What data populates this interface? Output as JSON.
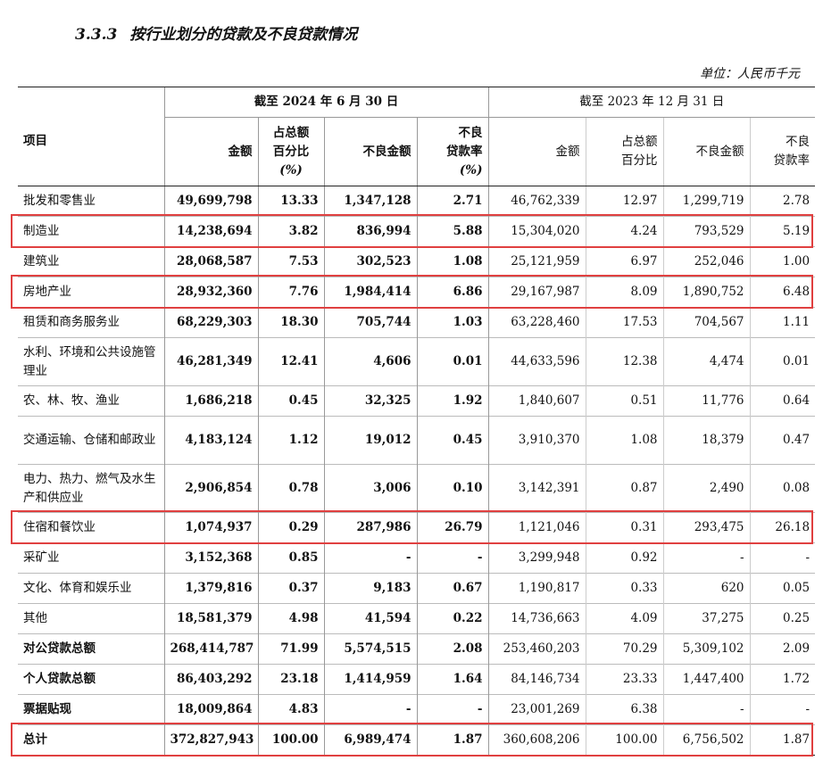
{
  "title": {
    "number": "3.3.3",
    "text": "按行业划分的贷款及不良贷款情况"
  },
  "unit": "单位：人民币千元",
  "header": {
    "item": "项目",
    "period_current": "截至 2024 年 6 月 30 日",
    "period_prior": "截至 2023 年 12 月 31 日",
    "col_amount": "金额",
    "col_share_1": "占总额",
    "col_share_2": "百分比",
    "col_share_3": "(%)",
    "col_npl_amount": "不良金额",
    "col_npl_rate_1": "不良",
    "col_npl_rate_2": "贷款率",
    "col_npl_rate_3": "(%)"
  },
  "rows": [
    {
      "label": "批发和零售业",
      "c_amt": "49,699,798",
      "c_pct": "13.33",
      "c_npl": "1,347,128",
      "c_rate": "2.71",
      "p_amt": "46,762,339",
      "p_pct": "12.97",
      "p_npl": "1,299,719",
      "p_rate": "2.78"
    },
    {
      "label": "制造业",
      "c_amt": "14,238,694",
      "c_pct": "3.82",
      "c_npl": "836,994",
      "c_rate": "5.88",
      "p_amt": "15,304,020",
      "p_pct": "4.24",
      "p_npl": "793,529",
      "p_rate": "5.19"
    },
    {
      "label": "建筑业",
      "c_amt": "28,068,587",
      "c_pct": "7.53",
      "c_npl": "302,523",
      "c_rate": "1.08",
      "p_amt": "25,121,959",
      "p_pct": "6.97",
      "p_npl": "252,046",
      "p_rate": "1.00"
    },
    {
      "label": "房地产业",
      "c_amt": "28,932,360",
      "c_pct": "7.76",
      "c_npl": "1,984,414",
      "c_rate": "6.86",
      "p_amt": "29,167,987",
      "p_pct": "8.09",
      "p_npl": "1,890,752",
      "p_rate": "6.48"
    },
    {
      "label": "租赁和商务服务业",
      "c_amt": "68,229,303",
      "c_pct": "18.30",
      "c_npl": "705,744",
      "c_rate": "1.03",
      "p_amt": "63,228,460",
      "p_pct": "17.53",
      "p_npl": "704,567",
      "p_rate": "1.11"
    },
    {
      "label": "水利、环境和公共设施管理业",
      "c_amt": "46,281,349",
      "c_pct": "12.41",
      "c_npl": "4,606",
      "c_rate": "0.01",
      "p_amt": "44,633,596",
      "p_pct": "12.38",
      "p_npl": "4,474",
      "p_rate": "0.01"
    },
    {
      "label": "农、林、牧、渔业",
      "c_amt": "1,686,218",
      "c_pct": "0.45",
      "c_npl": "32,325",
      "c_rate": "1.92",
      "p_amt": "1,840,607",
      "p_pct": "0.51",
      "p_npl": "11,776",
      "p_rate": "0.64"
    },
    {
      "label": "交通运输、仓储和邮政业",
      "c_amt": "4,183,124",
      "c_pct": "1.12",
      "c_npl": "19,012",
      "c_rate": "0.45",
      "p_amt": "3,910,370",
      "p_pct": "1.08",
      "p_npl": "18,379",
      "p_rate": "0.47"
    },
    {
      "label": "电力、热力、燃气及水生产和供应业",
      "c_amt": "2,906,854",
      "c_pct": "0.78",
      "c_npl": "3,006",
      "c_rate": "0.10",
      "p_amt": "3,142,391",
      "p_pct": "0.87",
      "p_npl": "2,490",
      "p_rate": "0.08"
    },
    {
      "label": "住宿和餐饮业",
      "c_amt": "1,074,937",
      "c_pct": "0.29",
      "c_npl": "287,986",
      "c_rate": "26.79",
      "p_amt": "1,121,046",
      "p_pct": "0.31",
      "p_npl": "293,475",
      "p_rate": "26.18"
    },
    {
      "label": "采矿业",
      "c_amt": "3,152,368",
      "c_pct": "0.85",
      "c_npl": "-",
      "c_rate": "-",
      "p_amt": "3,299,948",
      "p_pct": "0.92",
      "p_npl": "-",
      "p_rate": "-"
    },
    {
      "label": "文化、体育和娱乐业",
      "c_amt": "1,379,816",
      "c_pct": "0.37",
      "c_npl": "9,183",
      "c_rate": "0.67",
      "p_amt": "1,190,817",
      "p_pct": "0.33",
      "p_npl": "620",
      "p_rate": "0.05"
    },
    {
      "label": "其他",
      "c_amt": "18,581,379",
      "c_pct": "4.98",
      "c_npl": "41,594",
      "c_rate": "0.22",
      "p_amt": "14,736,663",
      "p_pct": "4.09",
      "p_npl": "37,275",
      "p_rate": "0.25"
    },
    {
      "label": "对公贷款总额",
      "c_amt": "268,414,787",
      "c_pct": "71.99",
      "c_npl": "5,574,515",
      "c_rate": "2.08",
      "p_amt": "253,460,203",
      "p_pct": "70.29",
      "p_npl": "5,309,102",
      "p_rate": "2.09"
    },
    {
      "label": "个人贷款总额",
      "c_amt": "86,403,292",
      "c_pct": "23.18",
      "c_npl": "1,414,959",
      "c_rate": "1.64",
      "p_amt": "84,146,734",
      "p_pct": "23.33",
      "p_npl": "1,447,400",
      "p_rate": "1.72"
    },
    {
      "label": "票据贴现",
      "c_amt": "18,009,864",
      "c_pct": "4.83",
      "c_npl": "-",
      "c_rate": "-",
      "p_amt": "23,001,269",
      "p_pct": "6.38",
      "p_npl": "-",
      "p_rate": "-"
    },
    {
      "label": "总计",
      "c_amt": "372,827,943",
      "c_pct": "100.00",
      "c_npl": "6,989,474",
      "c_rate": "1.87",
      "p_amt": "360,608,206",
      "p_pct": "100.00",
      "p_npl": "6,756,502",
      "p_rate": "1.87"
    }
  ],
  "highlight_color": "#e04040"
}
